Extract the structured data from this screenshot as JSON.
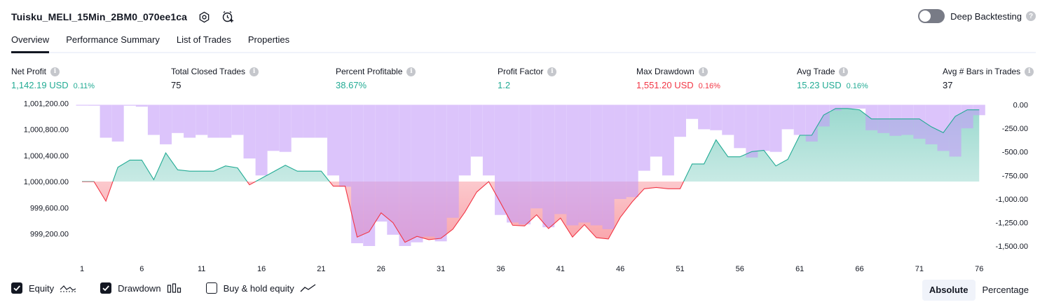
{
  "header": {
    "strategy_name": "Tuisku_MELI_15Min_2BM0_070ee1ca",
    "deep_backtesting_label": "Deep Backtesting",
    "deep_backtesting_on": false,
    "icons": [
      "settings-icon",
      "add-alert-icon",
      "help-icon"
    ]
  },
  "tabs": [
    {
      "label": "Overview",
      "active": true
    },
    {
      "label": "Performance Summary",
      "active": false
    },
    {
      "label": "List of Trades",
      "active": false
    },
    {
      "label": "Properties",
      "active": false
    }
  ],
  "metrics": {
    "net_profit": {
      "label": "Net Profit",
      "value": "1,142.19 USD",
      "pct": "0.11%"
    },
    "total_closed_trades": {
      "label": "Total Closed Trades",
      "value": "75"
    },
    "percent_profitable": {
      "label": "Percent Profitable",
      "value": "38.67%"
    },
    "profit_factor": {
      "label": "Profit Factor",
      "value": "1.2"
    },
    "max_drawdown": {
      "label": "Max Drawdown",
      "value": "1,551.20 USD",
      "pct": "0.16%"
    },
    "avg_trade": {
      "label": "Avg Trade",
      "value": "15.23 USD",
      "pct": "0.16%"
    },
    "avg_bars": {
      "label": "Avg # Bars in Trades",
      "value": "37"
    }
  },
  "colors": {
    "green": "#22ab94",
    "red": "#f23645",
    "drawdown_bar": "#c59cf8",
    "equity_line": "#22ab94"
  },
  "chart_data": {
    "type": "area",
    "x_ticks": [
      "1",
      "6",
      "11",
      "16",
      "21",
      "26",
      "31",
      "36",
      "41",
      "46",
      "51",
      "56",
      "61",
      "66",
      "71",
      "76"
    ],
    "y_left_ticks": [
      "1,001,200.00",
      "1,000,800.00",
      "1,000,400.00",
      "1,000,000.00",
      "999,600.00",
      "999,200.00"
    ],
    "y_right_ticks": [
      "0.00",
      "-250.00",
      "-500.00",
      "-750.00",
      "-1,000.00",
      "-1,250.00",
      "-1,500.00"
    ],
    "y_left_range": [
      999000,
      1001200
    ],
    "y_right_range": [
      -1650,
      0
    ],
    "baseline": 1000000,
    "series": [
      {
        "name": "Equity",
        "x": [
          1,
          2,
          3,
          4,
          5,
          6,
          7,
          8,
          9,
          10,
          11,
          12,
          13,
          14,
          15,
          16,
          17,
          18,
          19,
          20,
          21,
          22,
          23,
          24,
          25,
          26,
          27,
          28,
          29,
          30,
          31,
          32,
          33,
          34,
          35,
          36,
          37,
          38,
          39,
          40,
          41,
          42,
          43,
          44,
          45,
          46,
          47,
          48,
          49,
          50,
          51,
          52,
          53,
          54,
          55,
          56,
          57,
          58,
          59,
          60,
          61,
          62,
          63,
          64,
          65,
          66,
          67,
          68,
          69,
          70,
          71,
          72,
          73,
          74,
          75,
          76
        ],
        "values": [
          1000000,
          1000000,
          999700,
          1000220,
          1000330,
          1000330,
          1000030,
          1000440,
          1000180,
          1000160,
          1000160,
          1000160,
          1000240,
          1000210,
          999950,
          1000050,
          1000150,
          1000250,
          1000160,
          1000160,
          1000160,
          999930,
          999930,
          999150,
          999230,
          999520,
          999370,
          999070,
          999160,
          999110,
          999130,
          999270,
          999530,
          999840,
          1000000,
          999670,
          999330,
          999320,
          999490,
          999280,
          999440,
          999150,
          999340,
          999140,
          999120,
          999450,
          999690,
          999890,
          999910,
          999890,
          999890,
          1000270,
          1000270,
          1000640,
          1000380,
          1000380,
          1000460,
          1000480,
          1000240,
          1000340,
          1000710,
          1000710,
          1001020,
          1001120,
          1001120,
          1001100,
          1000960,
          1000960,
          1000960,
          1000960,
          1000960,
          1000840,
          1000750,
          1001000,
          1001100,
          1001100
        ]
      },
      {
        "name": "Drawdown",
        "values": [
          0,
          -10,
          -350,
          -390,
          -10,
          -20,
          -320,
          -420,
          -300,
          -350,
          -320,
          -350,
          -350,
          -320,
          -570,
          -750,
          -490,
          -500,
          -350,
          -350,
          -350,
          -750,
          -870,
          -1470,
          -1500,
          -1240,
          -1380,
          -1500,
          -1460,
          -1400,
          -1450,
          -1200,
          -750,
          -550,
          -750,
          -1170,
          -1250,
          -1270,
          -1100,
          -1300,
          -1160,
          -1280,
          -1250,
          -1280,
          -1320,
          -1000,
          -980,
          -700,
          -550,
          -750,
          -340,
          -150,
          -260,
          -270,
          -320,
          -460,
          -560,
          -490,
          -500,
          -260,
          -320,
          -390,
          -230,
          -60,
          -40,
          -40,
          -270,
          -300,
          -330,
          -320,
          -360,
          -420,
          -490,
          -550,
          -250,
          -110
        ]
      }
    ]
  },
  "legend": [
    {
      "label": "Equity",
      "checked": true
    },
    {
      "label": "Drawdown",
      "checked": true
    },
    {
      "label": "Buy & hold equity",
      "checked": false
    }
  ],
  "view_mode": {
    "options": [
      "Absolute",
      "Percentage"
    ],
    "selected": "Absolute"
  }
}
